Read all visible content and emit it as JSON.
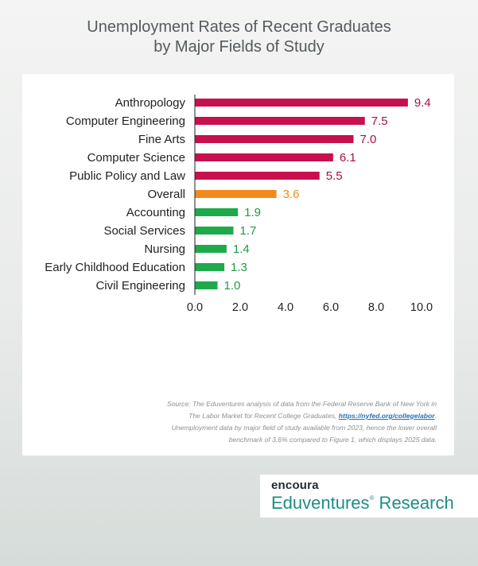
{
  "title_line1": "Unemployment Rates of Recent Graduates",
  "title_line2": "by Major Fields of Study",
  "chart_data": {
    "type": "bar",
    "orientation": "horizontal",
    "title": "Unemployment Rates of Recent Graduates by Major Fields of Study",
    "categories": [
      "Anthropology",
      "Computer Engineering",
      "Fine Arts",
      "Computer Science",
      "Public Policy and Law",
      "Overall",
      "Accounting",
      "Social Services",
      "Nursing",
      "Early Childhood Education",
      "Civil Engineering"
    ],
    "values": [
      9.4,
      7.5,
      7.0,
      6.1,
      5.5,
      3.6,
      1.9,
      1.7,
      1.4,
      1.3,
      1.0
    ],
    "value_labels": [
      "9.4",
      "7.5",
      "7.0",
      "6.1",
      "5.5",
      "3.6",
      "1.9",
      "1.7",
      "1.4",
      "1.3",
      "1.0"
    ],
    "bar_colors": [
      "#c8104e",
      "#c8104e",
      "#c8104e",
      "#c8104e",
      "#c8104e",
      "#f28a1e",
      "#1ea94a",
      "#1ea94a",
      "#1ea94a",
      "#1ea94a",
      "#1ea94a"
    ],
    "label_colors": [
      "#a4123c",
      "#a4123c",
      "#a4123c",
      "#a4123c",
      "#a4123c",
      "#ef8a1c",
      "#1d9a43",
      "#1d9a43",
      "#1d9a43",
      "#1d9a43",
      "#1d9a43"
    ],
    "xlim": [
      0,
      10
    ],
    "xticks": [
      "0.0",
      "2.0",
      "4.0",
      "6.0",
      "8.0",
      "10.0"
    ],
    "xlabel": "",
    "ylabel": "",
    "grid": false,
    "legend": "none"
  },
  "source": {
    "line1": "Source: The Eduventures analysis of data from the Federal Reserve Bank of New York in",
    "line2_text": "The Labor Market for Recent College Graduates,",
    "link": "https://nyfed.org/collegelabor",
    "line2_end": ".",
    "line3": "Unemployment data by major field of study available from 2023, hence the lower overall",
    "line4": "benchmark of 3.6% compared to Figure 1, which displays 2025 data."
  },
  "logo": {
    "top": "encoura",
    "brand": "Eduventures",
    "reg": "®",
    "suffix": " Research"
  }
}
